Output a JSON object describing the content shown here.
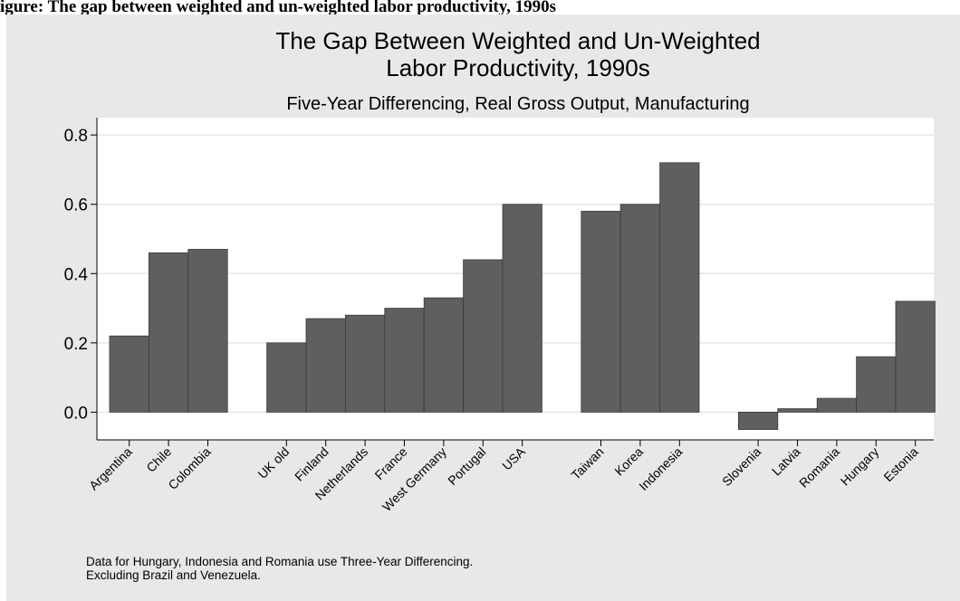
{
  "figure_caption": "igure: The gap between weighted and un-weighted labor productivity, 1990s",
  "chart_data": {
    "type": "bar",
    "title_line1": "The Gap Between Weighted and Un-Weighted",
    "title_line2": "Labor Productivity, 1990s",
    "subtitle": "Five-Year Differencing, Real Gross Output, Manufacturing",
    "xlabel": "",
    "ylabel": "",
    "ylim": [
      -0.08,
      0.85
    ],
    "yticks": [
      "0.0",
      "0.2",
      "0.4",
      "0.6",
      "0.8"
    ],
    "grid": true,
    "bar_color": "#5f5f5f",
    "groups": [
      {
        "categories": [
          "Argentina",
          "Chile",
          "Colombia"
        ],
        "values": [
          0.22,
          0.46,
          0.47
        ]
      },
      {
        "categories": [
          "UK old",
          "Finland",
          "Netherlands",
          "France",
          "West Germany",
          "Portugal",
          "USA"
        ],
        "values": [
          0.2,
          0.27,
          0.28,
          0.3,
          0.33,
          0.44,
          0.6
        ]
      },
      {
        "categories": [
          "Taiwan",
          "Korea",
          "Indonesia"
        ],
        "values": [
          0.58,
          0.6,
          0.72
        ]
      },
      {
        "categories": [
          "Slovenia",
          "Latvia",
          "Romania",
          "Hungary",
          "Estonia"
        ],
        "values": [
          -0.05,
          0.01,
          0.04,
          0.16,
          0.32
        ]
      }
    ]
  },
  "notes": [
    "Data for Hungary, Indonesia and Romania use Three-Year Differencing.",
    "Excluding Brazil and Venezuela."
  ]
}
